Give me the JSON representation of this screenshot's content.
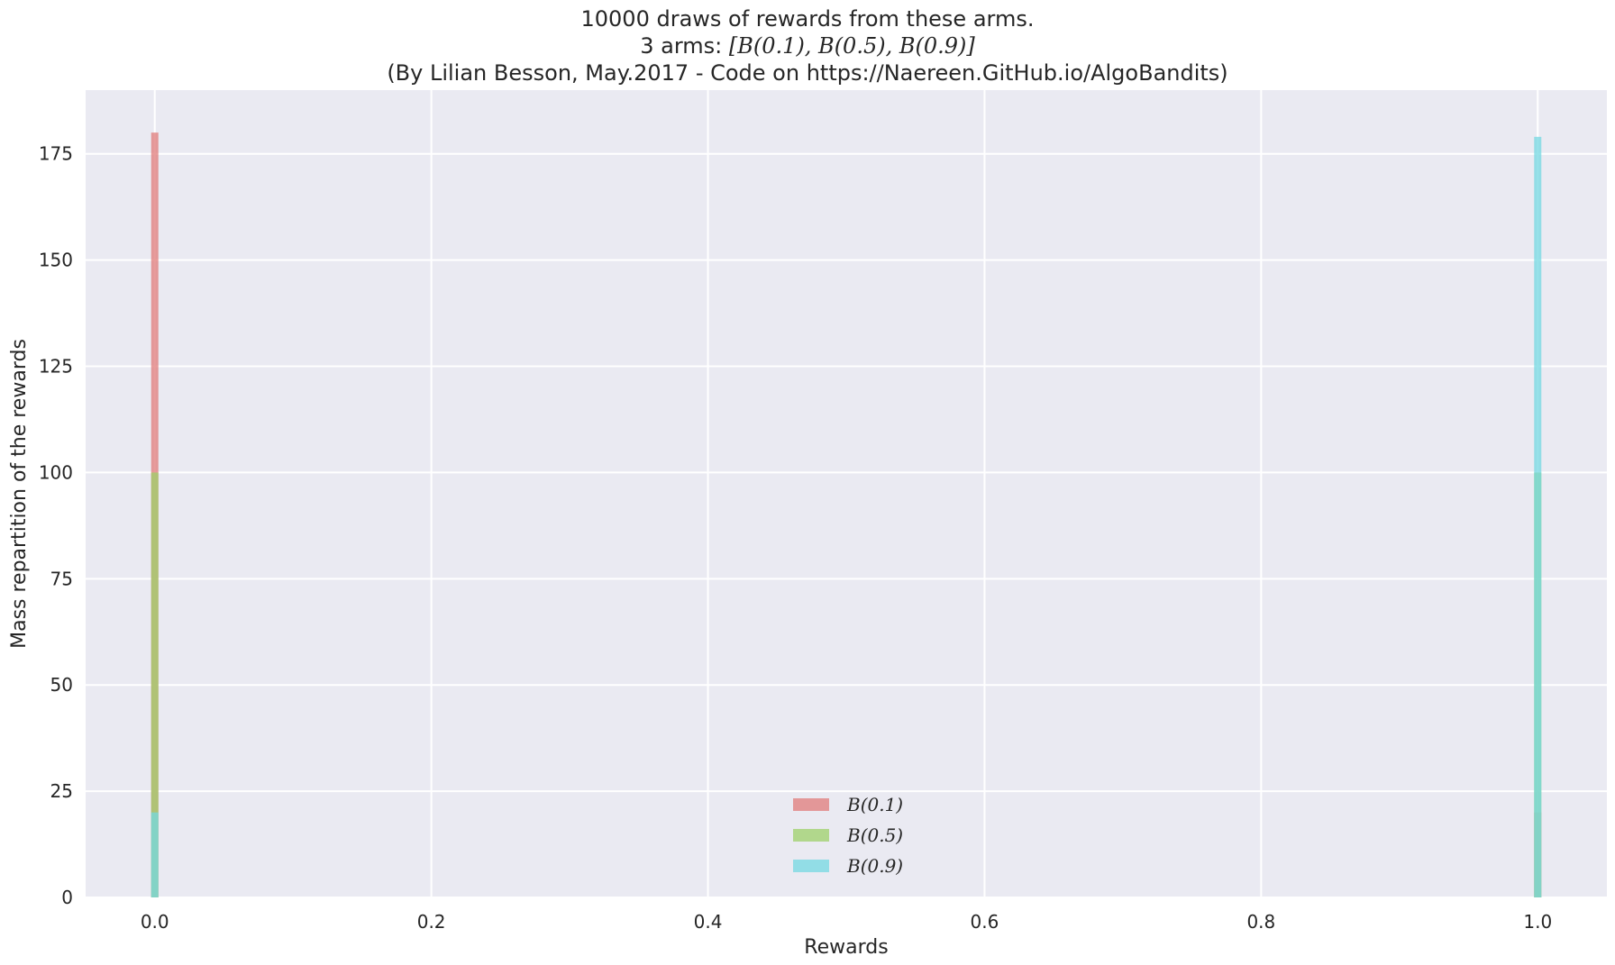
{
  "chart_data": {
    "type": "bar",
    "title": "10000 draws of rewards from these arms.",
    "subtitle": "3 arms: [B(0.1), B(0.5), B(0.9)]",
    "subtitle_prefix": "3 arms: ",
    "subtitle_math": "[B(0.1), B(0.5), B(0.9)]",
    "credit": "(By Lilian Besson, May.2017 - Code on https://Naereen.GitHub.io/AlgoBandits)",
    "xlabel": "Rewards",
    "ylabel": "Mass repartition of the rewards",
    "xlim": [
      -0.05,
      1.05
    ],
    "ylim": [
      0,
      190
    ],
    "xticks": [
      0.0,
      0.2,
      0.4,
      0.6,
      0.8,
      1.0
    ],
    "xtick_labels": [
      "0.0",
      "0.2",
      "0.4",
      "0.6",
      "0.8",
      "1.0"
    ],
    "yticks": [
      0,
      25,
      50,
      75,
      100,
      125,
      150,
      175
    ],
    "ytick_labels": [
      "0",
      "25",
      "50",
      "75",
      "100",
      "125",
      "150",
      "175"
    ],
    "grid": true,
    "legend_position": "lower-center",
    "categories": [
      0.0,
      1.0
    ],
    "series": [
      {
        "name": "B(0.1)",
        "color": "#e07b79",
        "values": [
          180,
          20
        ]
      },
      {
        "name": "B(0.5)",
        "color": "#9ed06a",
        "values": [
          100,
          100
        ]
      },
      {
        "name": "B(0.9)",
        "color": "#74d8e2",
        "values": [
          20,
          179
        ]
      }
    ]
  }
}
